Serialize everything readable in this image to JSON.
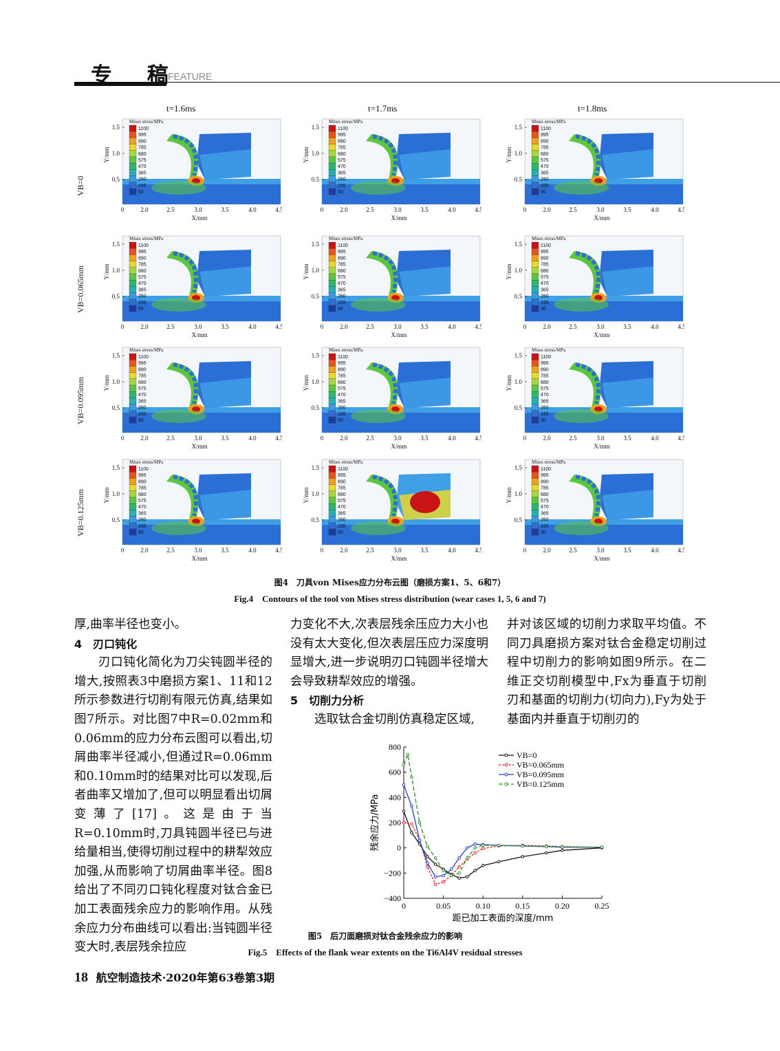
{
  "header": {
    "title": "专 稿",
    "feature": "FEATURE"
  },
  "figure4": {
    "col_titles": [
      "t=1.6ms",
      "t=1.7ms",
      "t=1.8ms"
    ],
    "row_labels": [
      "VB=0",
      "VB=0.065mm",
      "VB=0.095mm",
      "VB=0.125mm"
    ],
    "legend_title": "Mises stress/MPa",
    "legend_values": [
      "1100",
      "995",
      "890",
      "785",
      "680",
      "575",
      "470",
      "365",
      "260",
      "155",
      "50"
    ],
    "legend_colors": [
      "#c81414",
      "#e8531b",
      "#f0a020",
      "#e8d830",
      "#a6d640",
      "#5cc640",
      "#2db86a",
      "#26b0b0",
      "#3b9ae0",
      "#2f6fd0",
      "#1f3c9c"
    ],
    "x_ticks": [
      "0",
      "2.0",
      "2.5",
      "3.0",
      "3.5",
      "4.0",
      "4.5"
    ],
    "y_ticks": [
      "1.5",
      "1.0",
      "0.5"
    ],
    "x_label": "X/mm",
    "y_label": "Y/mm",
    "caption_cn": "图4　刀具von Mises应力分布云图（磨损方案1、5、6和7）",
    "caption_en": "Fig.4　Contours of the tool von Mises stress distribution (wear cases 1, 5, 6 and 7)"
  },
  "col1": {
    "l1": "厚,曲率半径也变小。",
    "sec4": "4　刃口钝化",
    "p1": "刃口钝化简化为刀尖钝圆半径的增大,按照表3中磨损方案1、11和12所示参数进行切削有限元仿真,结果如图7所示。对比图7中R=0.02mm和0.06mm的应力分布云图可以看出,切屑曲率半径减小,但通过R=0.06mm和0.10mm时的结果对比可以发现,后者曲率又增加了,但可以明显看出切屑变薄了[17]。这是由于当R=0.10mm时,刀具钝圆半径已与进给量相当,使得切削过程中的耕犁效应加强,从而影响了切屑曲率半径。图8给出了不同刃口钝化程度对钛合金已加工表面残余应力的影响作用。从残余应力分布曲线可以看出:当钝圆半径变大时,表层残余拉应"
  },
  "col2": {
    "p1": "力变化不大,次表层残余压应力大小也没有太大变化,但次表层压应力深度明显增大,进一步说明刃口钝圆半径增大会导致耕犁效应的增强。",
    "sec5": "5　切削力分析",
    "p2": "选取钛合金切削仿真稳定区域,"
  },
  "col3": {
    "p1": "并对该区域的切削力求取平均值。不同刀具磨损方案对钛合金稳定切削过程中切削力的影响如图9所示。在二维正交切削模型中,Fx为垂直于切削刃和基面的切削力(切向力),Fy为处于基面内并垂直于切削刃的"
  },
  "figure5": {
    "caption_cn": "图5　后刀面磨损对钛合金残余应力的影响",
    "caption_en": "Fig.5　Effects of the flank wear extents on the Ti6Al4V residual stresses",
    "chart_data": {
      "type": "line",
      "xlabel": "距已加工表面的深度/mm",
      "ylabel": "残余应力/MPa",
      "xlim": [
        0,
        0.25
      ],
      "ylim": [
        -400,
        800
      ],
      "x_ticks": [
        "0",
        "0.05",
        "0.10",
        "0.15",
        "0.20",
        "0.25"
      ],
      "y_ticks": [
        "800",
        "600",
        "400",
        "200",
        "0",
        "−200",
        "−400"
      ],
      "legend": "top-right",
      "series": [
        {
          "name": "VB=0",
          "color": "#111111",
          "dash": "",
          "x": [
            0,
            0.01,
            0.02,
            0.03,
            0.04,
            0.05,
            0.06,
            0.07,
            0.08,
            0.09,
            0.1,
            0.12,
            0.15,
            0.18,
            0.2,
            0.25
          ],
          "y": [
            290,
            120,
            30,
            -70,
            -130,
            -170,
            -210,
            -240,
            -230,
            -180,
            -140,
            -110,
            -70,
            -40,
            -20,
            0
          ]
        },
        {
          "name": "VB=0.065mm",
          "color": "#d42020",
          "dash": "3,2",
          "x": [
            0,
            0.01,
            0.02,
            0.03,
            0.04,
            0.05,
            0.06,
            0.07,
            0.08,
            0.09,
            0.1,
            0.12,
            0.15,
            0.18,
            0.2,
            0.25
          ],
          "y": [
            200,
            190,
            60,
            -150,
            -290,
            -270,
            -220,
            -150,
            -90,
            -40,
            -5,
            15,
            20,
            15,
            10,
            5
          ]
        },
        {
          "name": "VB=0.095mm",
          "color": "#2040c0",
          "dash": "",
          "x": [
            0,
            0.01,
            0.02,
            0.03,
            0.04,
            0.05,
            0.06,
            0.07,
            0.08,
            0.09,
            0.1,
            0.12,
            0.15,
            0.18,
            0.2,
            0.25
          ],
          "y": [
            500,
            330,
            60,
            -120,
            -230,
            -220,
            -170,
            -80,
            0,
            30,
            25,
            20,
            15,
            10,
            5,
            5
          ]
        },
        {
          "name": "VB=0.125mm",
          "color": "#2a8a2a",
          "dash": "6,3",
          "x": [
            0,
            0.005,
            0.01,
            0.02,
            0.03,
            0.04,
            0.05,
            0.06,
            0.07,
            0.08,
            0.09,
            0.1,
            0.12,
            0.15,
            0.18,
            0.2,
            0.25
          ],
          "y": [
            660,
            740,
            560,
            200,
            10,
            -80,
            -180,
            -220,
            -200,
            -80,
            0,
            20,
            20,
            15,
            10,
            8,
            5
          ]
        }
      ]
    }
  },
  "footer": {
    "page": "18",
    "journal": "航空制造技术·2020年第63卷第3期"
  }
}
